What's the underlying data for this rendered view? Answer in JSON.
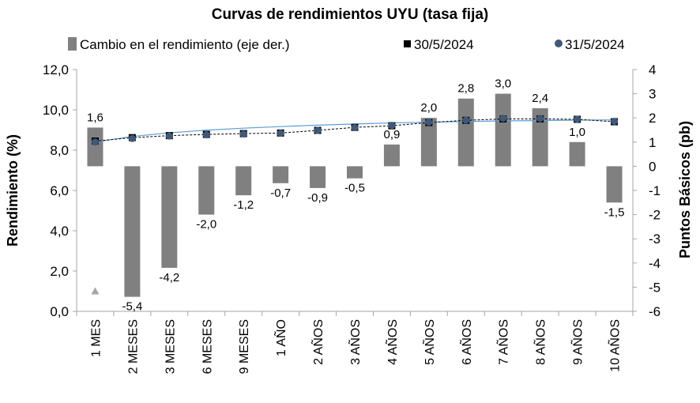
{
  "chart_data": {
    "type": "bar",
    "title": "Curvas de rendimientos UYU (tasa fija)",
    "ylabel": "Rendimiento (%)",
    "y2label": "Puntos Básicos (pb)",
    "ylim": [
      0,
      12
    ],
    "y2lim": [
      -6,
      4
    ],
    "yticks": [
      "0,0",
      "2,0",
      "4,0",
      "6,0",
      "8,0",
      "10,0",
      "12,0"
    ],
    "y2ticks": [
      "-6",
      "-5",
      "-4",
      "-3",
      "-2",
      "-1",
      "0",
      "1",
      "2",
      "3",
      "4"
    ],
    "categories": [
      "1 MES",
      "2 MESES",
      "3 MESES",
      "6 MESES",
      "9 MESES",
      "1 AÑO",
      "2 AÑOS",
      "3 AÑOS",
      "4 AÑOS",
      "5 AÑOS",
      "6 AÑOS",
      "7 AÑOS",
      "8 AÑOS",
      "9 AÑOS",
      "10 AÑOS"
    ],
    "legend": [
      "Cambio en el rendimiento (eje der.)",
      "30/5/2024",
      "31/5/2024"
    ],
    "series": [
      {
        "name": "Cambio en el rendimiento (eje der.)",
        "type": "bar",
        "axis": "right",
        "color": "#808080",
        "values": [
          1.6,
          -5.4,
          -4.2,
          -2.0,
          -1.2,
          -0.7,
          -0.9,
          -0.5,
          0.9,
          2.0,
          2.8,
          3.0,
          2.4,
          1.0,
          -1.5
        ],
        "labels": [
          "1,6",
          "-5,4",
          "-4,2",
          "-2,0",
          "-1,2",
          "-0,7",
          "-0,9",
          "-0,5",
          "0,9",
          "2,0",
          "2,8",
          "3,0",
          "2,4",
          "1,0",
          "-1,5"
        ]
      },
      {
        "name": "30/5/2024",
        "type": "line",
        "axis": "left",
        "color": "#000000",
        "marker": "square",
        "values": [
          8.45,
          8.62,
          8.72,
          8.78,
          8.82,
          8.85,
          8.98,
          9.13,
          9.21,
          9.37,
          9.48,
          9.55,
          9.55,
          9.53,
          9.41
        ]
      },
      {
        "name": "31/5/2024",
        "type": "line",
        "axis": "left",
        "color": "#3f5978",
        "marker": "circle",
        "values": [
          8.4,
          8.58,
          8.7,
          8.76,
          8.8,
          8.84,
          8.98,
          9.12,
          9.23,
          9.39,
          9.49,
          9.58,
          9.57,
          9.54,
          9.43
        ]
      }
    ],
    "trend_line": {
      "color": "#5b9bd5",
      "values": [
        8.4,
        8.68,
        8.86,
        8.99,
        9.09,
        9.17,
        9.24,
        9.3,
        9.35,
        9.39,
        9.42,
        9.45,
        9.47,
        9.49,
        9.5
      ]
    },
    "marker_other": {
      "category_index": 0,
      "value": 1.0,
      "shape": "triangle",
      "color": "#a6a6a6"
    }
  }
}
